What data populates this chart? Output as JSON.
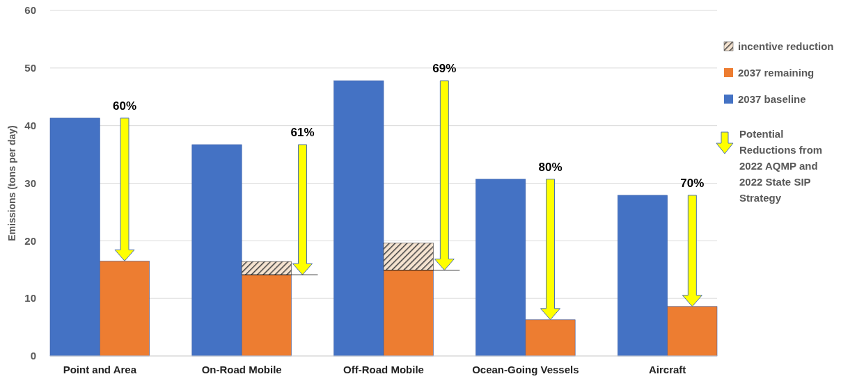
{
  "chart_data": {
    "type": "bar",
    "ylabel": "Emissions (tons per day)",
    "categories": [
      "Point and Area",
      "On-Road Mobile",
      "Off-Road Mobile",
      "Ocean-Going Vessels",
      "Aircraft"
    ],
    "series": [
      {
        "name": "2037 baseline",
        "color": "#4472c4",
        "values": [
          41.3,
          36.7,
          47.8,
          30.7,
          27.9
        ]
      },
      {
        "name": "2037 remaining",
        "color": "#ed7d31",
        "values": [
          16.5,
          14.1,
          14.9,
          6.3,
          8.6
        ]
      },
      {
        "name": "incentive reduction",
        "color": "#404040",
        "values": [
          null,
          2.3,
          4.7,
          null,
          null
        ],
        "base": [
          null,
          14.1,
          14.9,
          null,
          null
        ]
      }
    ],
    "ylim": [
      0,
      60
    ],
    "yticks": [
      0,
      10,
      20,
      30,
      40,
      50,
      60
    ],
    "grid": "y",
    "legend": "right",
    "annotations": [
      "60%",
      "61%",
      "69%",
      "80%",
      "70%",
      "Potential Reductions from 2022 AQMP and 2022 State SIP Strategy"
    ]
  }
}
